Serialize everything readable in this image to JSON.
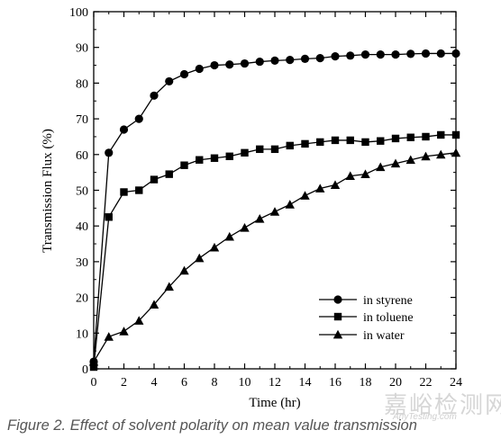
{
  "caption": "Figure 2. Effect of solvent polarity on mean value transmission",
  "watermark": {
    "brand": "嘉峪检测网",
    "site": "AnyTesting.com"
  },
  "chart_data": {
    "type": "line",
    "title": "",
    "xlabel": "Time (hr)",
    "ylabel": "Transmission Flux (%)",
    "xlim": [
      0,
      24
    ],
    "ylim": [
      0,
      100
    ],
    "x_ticks": [
      0,
      2,
      4,
      6,
      8,
      10,
      12,
      14,
      16,
      18,
      20,
      22,
      24
    ],
    "y_ticks": [
      0,
      10,
      20,
      30,
      40,
      50,
      60,
      70,
      80,
      90,
      100
    ],
    "grid": false,
    "legend_position": "lower-right",
    "series": [
      {
        "name": "in styrene",
        "marker": "circle",
        "x": [
          0,
          1,
          2,
          3,
          4,
          5,
          6,
          7,
          8,
          9,
          10,
          11,
          12,
          13,
          14,
          15,
          16,
          17,
          18,
          19,
          20,
          21,
          22,
          23,
          24
        ],
        "y": [
          2,
          60.5,
          67,
          70,
          76.5,
          80.5,
          82.5,
          84,
          85,
          85.2,
          85.5,
          86,
          86.3,
          86.5,
          86.8,
          87,
          87.5,
          87.7,
          88,
          88,
          88,
          88.2,
          88.3,
          88.3,
          88.3
        ]
      },
      {
        "name": "in toluene",
        "marker": "square",
        "x": [
          0,
          1,
          2,
          3,
          4,
          5,
          6,
          7,
          8,
          9,
          10,
          11,
          12,
          13,
          14,
          15,
          16,
          17,
          18,
          19,
          20,
          21,
          22,
          23,
          24
        ],
        "y": [
          0.5,
          42.5,
          49.5,
          50,
          53,
          54.5,
          57,
          58.5,
          59,
          59.5,
          60.5,
          61.5,
          61.5,
          62.5,
          63,
          63.5,
          64,
          64,
          63.5,
          63.8,
          64.5,
          64.8,
          65,
          65.5,
          65.5
        ]
      },
      {
        "name": "in water",
        "marker": "triangle",
        "x": [
          0,
          1,
          2,
          3,
          4,
          5,
          6,
          7,
          8,
          9,
          10,
          11,
          12,
          13,
          14,
          15,
          16,
          17,
          18,
          19,
          20,
          21,
          22,
          23,
          24
        ],
        "y": [
          2,
          9,
          10.5,
          13.5,
          18,
          23,
          27.5,
          31,
          34,
          37,
          39.5,
          42,
          44,
          46,
          48.5,
          50.5,
          51.5,
          54,
          54.5,
          56.5,
          57.5,
          58.5,
          59.5,
          60,
          60.5
        ]
      }
    ]
  }
}
